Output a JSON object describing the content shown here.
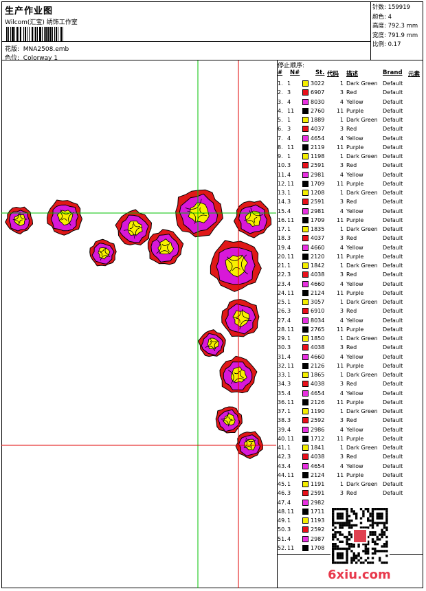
{
  "header": {
    "title": "生产作业图",
    "company": "Wilcom(汇宝) 绣饰工作室",
    "design_label": "花版:",
    "design_value": "MNA2508.emb",
    "colorway_label": "色位:",
    "colorway_value": "Colorway 1"
  },
  "stats": {
    "stitches": "针数: 159919",
    "colors": "颜色: 4",
    "height": "高度: 792.3 mm",
    "width": "宽度: 791.9 mm",
    "scale": "比例: 0.17"
  },
  "stop_sequence": {
    "label": "停止顺序:",
    "headers": {
      "num": "#",
      "needle": "N#",
      "st": "St.",
      "code": "代码",
      "desc": "描述",
      "brand": "Brand",
      "element": "元素"
    },
    "rows": [
      {
        "n": "1.",
        "needle": "1",
        "st": "3022",
        "code": "1",
        "desc": "Dark Green",
        "brand": "Default"
      },
      {
        "n": "2.",
        "needle": "3",
        "st": "6907",
        "code": "3",
        "desc": "Red",
        "brand": "Default"
      },
      {
        "n": "3.",
        "needle": "4",
        "st": "8030",
        "code": "4",
        "desc": "Yellow",
        "brand": "Default"
      },
      {
        "n": "4.",
        "needle": "11",
        "st": "2760",
        "code": "11",
        "desc": "Purple",
        "brand": "Default"
      },
      {
        "n": "5.",
        "needle": "1",
        "st": "1889",
        "code": "1",
        "desc": "Dark Green",
        "brand": "Default"
      },
      {
        "n": "6.",
        "needle": "3",
        "st": "4037",
        "code": "3",
        "desc": "Red",
        "brand": "Default"
      },
      {
        "n": "7.",
        "needle": "4",
        "st": "4654",
        "code": "4",
        "desc": "Yellow",
        "brand": "Default"
      },
      {
        "n": "8.",
        "needle": "11",
        "st": "2119",
        "code": "11",
        "desc": "Purple",
        "brand": "Default"
      },
      {
        "n": "9.",
        "needle": "1",
        "st": "1198",
        "code": "1",
        "desc": "Dark Green",
        "brand": "Default"
      },
      {
        "n": "10.",
        "needle": "3",
        "st": "2591",
        "code": "3",
        "desc": "Red",
        "brand": "Default"
      },
      {
        "n": "11.",
        "needle": "4",
        "st": "2981",
        "code": "4",
        "desc": "Yellow",
        "brand": "Default"
      },
      {
        "n": "12.",
        "needle": "11",
        "st": "1709",
        "code": "11",
        "desc": "Purple",
        "brand": "Default"
      },
      {
        "n": "13.",
        "needle": "1",
        "st": "1208",
        "code": "1",
        "desc": "Dark Green",
        "brand": "Default"
      },
      {
        "n": "14.",
        "needle": "3",
        "st": "2591",
        "code": "3",
        "desc": "Red",
        "brand": "Default"
      },
      {
        "n": "15.",
        "needle": "4",
        "st": "2981",
        "code": "4",
        "desc": "Yellow",
        "brand": "Default"
      },
      {
        "n": "16.",
        "needle": "11",
        "st": "1709",
        "code": "11",
        "desc": "Purple",
        "brand": "Default"
      },
      {
        "n": "17.",
        "needle": "1",
        "st": "1835",
        "code": "1",
        "desc": "Dark Green",
        "brand": "Default"
      },
      {
        "n": "18.",
        "needle": "3",
        "st": "4037",
        "code": "3",
        "desc": "Red",
        "brand": "Default"
      },
      {
        "n": "19.",
        "needle": "4",
        "st": "4660",
        "code": "4",
        "desc": "Yellow",
        "brand": "Default"
      },
      {
        "n": "20.",
        "needle": "11",
        "st": "2120",
        "code": "11",
        "desc": "Purple",
        "brand": "Default"
      },
      {
        "n": "21.",
        "needle": "1",
        "st": "1842",
        "code": "1",
        "desc": "Dark Green",
        "brand": "Default"
      },
      {
        "n": "22.",
        "needle": "3",
        "st": "4038",
        "code": "3",
        "desc": "Red",
        "brand": "Default"
      },
      {
        "n": "23.",
        "needle": "4",
        "st": "4660",
        "code": "4",
        "desc": "Yellow",
        "brand": "Default"
      },
      {
        "n": "24.",
        "needle": "11",
        "st": "2124",
        "code": "11",
        "desc": "Purple",
        "brand": "Default"
      },
      {
        "n": "25.",
        "needle": "1",
        "st": "3057",
        "code": "1",
        "desc": "Dark Green",
        "brand": "Default"
      },
      {
        "n": "26.",
        "needle": "3",
        "st": "6910",
        "code": "3",
        "desc": "Red",
        "brand": "Default"
      },
      {
        "n": "27.",
        "needle": "4",
        "st": "8034",
        "code": "4",
        "desc": "Yellow",
        "brand": "Default"
      },
      {
        "n": "28.",
        "needle": "11",
        "st": "2765",
        "code": "11",
        "desc": "Purple",
        "brand": "Default"
      },
      {
        "n": "29.",
        "needle": "1",
        "st": "1850",
        "code": "1",
        "desc": "Dark Green",
        "brand": "Default"
      },
      {
        "n": "30.",
        "needle": "3",
        "st": "4038",
        "code": "3",
        "desc": "Red",
        "brand": "Default"
      },
      {
        "n": "31.",
        "needle": "4",
        "st": "4660",
        "code": "4",
        "desc": "Yellow",
        "brand": "Default"
      },
      {
        "n": "32.",
        "needle": "11",
        "st": "2126",
        "code": "11",
        "desc": "Purple",
        "brand": "Default"
      },
      {
        "n": "33.",
        "needle": "1",
        "st": "1865",
        "code": "1",
        "desc": "Dark Green",
        "brand": "Default"
      },
      {
        "n": "34.",
        "needle": "3",
        "st": "4038",
        "code": "3",
        "desc": "Red",
        "brand": "Default"
      },
      {
        "n": "35.",
        "needle": "4",
        "st": "4654",
        "code": "4",
        "desc": "Yellow",
        "brand": "Default"
      },
      {
        "n": "36.",
        "needle": "11",
        "st": "2126",
        "code": "11",
        "desc": "Purple",
        "brand": "Default"
      },
      {
        "n": "37.",
        "needle": "1",
        "st": "1190",
        "code": "1",
        "desc": "Dark Green",
        "brand": "Default"
      },
      {
        "n": "38.",
        "needle": "3",
        "st": "2592",
        "code": "3",
        "desc": "Red",
        "brand": "Default"
      },
      {
        "n": "39.",
        "needle": "4",
        "st": "2986",
        "code": "4",
        "desc": "Yellow",
        "brand": "Default"
      },
      {
        "n": "40.",
        "needle": "11",
        "st": "1712",
        "code": "11",
        "desc": "Purple",
        "brand": "Default"
      },
      {
        "n": "41.",
        "needle": "1",
        "st": "1841",
        "code": "1",
        "desc": "Dark Green",
        "brand": "Default"
      },
      {
        "n": "42.",
        "needle": "3",
        "st": "4038",
        "code": "3",
        "desc": "Red",
        "brand": "Default"
      },
      {
        "n": "43.",
        "needle": "4",
        "st": "4654",
        "code": "4",
        "desc": "Yellow",
        "brand": "Default"
      },
      {
        "n": "44.",
        "needle": "11",
        "st": "2124",
        "code": "11",
        "desc": "Purple",
        "brand": "Default"
      },
      {
        "n": "45.",
        "needle": "1",
        "st": "1191",
        "code": "1",
        "desc": "Dark Green",
        "brand": "Default"
      },
      {
        "n": "46.",
        "needle": "3",
        "st": "2591",
        "code": "3",
        "desc": "Red",
        "brand": "Default"
      },
      {
        "n": "47.",
        "needle": "4",
        "st": "2982",
        "code": "",
        "desc": "",
        "brand": ""
      },
      {
        "n": "48.",
        "needle": "11",
        "st": "1711",
        "code": "",
        "desc": "",
        "brand": ""
      },
      {
        "n": "49.",
        "needle": "1",
        "st": "1193",
        "code": "",
        "desc": "",
        "brand": ""
      },
      {
        "n": "50.",
        "needle": "3",
        "st": "2592",
        "code": "",
        "desc": "",
        "brand": ""
      },
      {
        "n": "51.",
        "needle": "4",
        "st": "2987",
        "code": "",
        "desc": "",
        "brand": ""
      },
      {
        "n": "52.",
        "needle": "11",
        "st": "1708",
        "code": "",
        "desc": "",
        "brand": ""
      }
    ]
  },
  "thread_colors": {
    "1": "#f4ee00",
    "3": "#e8101a",
    "4": "#e830e0",
    "11": "#000000"
  },
  "flower_colors": {
    "outer": "#e01818",
    "mid": "#d818d8",
    "center": "#f8f000",
    "outline": "#000000"
  },
  "guide_colors": {
    "green": "#00c000",
    "red": "#e00000"
  },
  "watermark": "6xiu.com"
}
